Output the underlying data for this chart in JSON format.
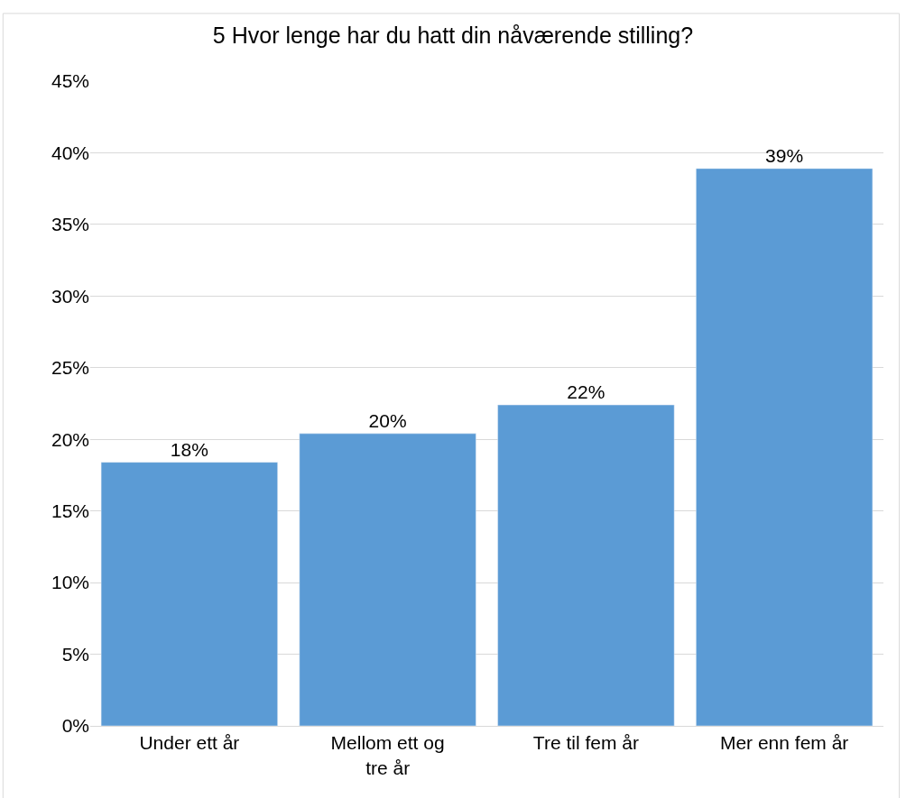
{
  "chart_data": {
    "type": "bar",
    "title": "5 Hvor lenge har du hatt din nåværende stilling?",
    "categories": [
      "Under ett år",
      "Mellom ett og tre år",
      "Tre til fem år",
      "Mer enn fem år"
    ],
    "values": [
      18.4,
      20.4,
      22.4,
      38.9
    ],
    "value_labels": [
      "18%",
      "20%",
      "22%",
      "39%"
    ],
    "color": "#5b9bd5",
    "ylim": [
      0,
      45
    ],
    "yticks": [
      {
        "value": 0,
        "label": "0%"
      },
      {
        "value": 5,
        "label": "5%"
      },
      {
        "value": 10,
        "label": "10%"
      },
      {
        "value": 15,
        "label": "15%"
      },
      {
        "value": 20,
        "label": "20%"
      },
      {
        "value": 25,
        "label": "25%"
      },
      {
        "value": 30,
        "label": "30%"
      },
      {
        "value": 35,
        "label": "35%"
      },
      {
        "value": 40,
        "label": "40%"
      },
      {
        "value": 45,
        "label": "45%"
      }
    ],
    "grid": "y",
    "legend": false
  }
}
